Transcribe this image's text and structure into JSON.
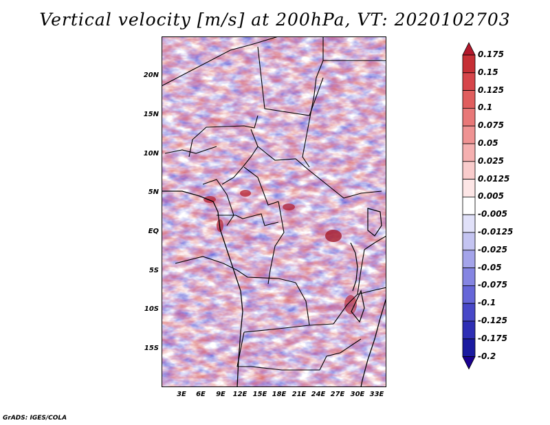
{
  "title": "Vertical velocity [m/s] at 200hPa, VT: 2020102703",
  "credit": "GrADS: IGES/COLA",
  "map": {
    "variable": "Vertical velocity",
    "units": "m/s",
    "level": "200hPa",
    "valid_time": "2020102703",
    "lat_range": [
      -19.5,
      24.5
    ],
    "lon_range": [
      0,
      34
    ],
    "lat_ticks": [
      {
        "value": 20,
        "label": "20N"
      },
      {
        "value": 15,
        "label": "15N"
      },
      {
        "value": 10,
        "label": "10N"
      },
      {
        "value": 5,
        "label": "5N"
      },
      {
        "value": 0,
        "label": "EQ"
      },
      {
        "value": -5,
        "label": "5S"
      },
      {
        "value": -10,
        "label": "10S"
      },
      {
        "value": -15,
        "label": "15S"
      }
    ],
    "lon_ticks": [
      {
        "value": 3,
        "label": "3E"
      },
      {
        "value": 6,
        "label": "6E"
      },
      {
        "value": 9,
        "label": "9E"
      },
      {
        "value": 12,
        "label": "12E"
      },
      {
        "value": 15,
        "label": "15E"
      },
      {
        "value": 18,
        "label": "18E"
      },
      {
        "value": 21,
        "label": "21E"
      },
      {
        "value": 24,
        "label": "24E"
      },
      {
        "value": 27,
        "label": "27E"
      },
      {
        "value": 30,
        "label": "30E"
      },
      {
        "value": 33,
        "label": "33E"
      }
    ]
  },
  "colorbar": {
    "labels": [
      "0.175",
      "0.15",
      "0.125",
      "0.1",
      "0.075",
      "0.05",
      "0.025",
      "0.0125",
      "0.005",
      "-0.005",
      "-0.0125",
      "-0.025",
      "-0.05",
      "-0.075",
      "-0.1",
      "-0.125",
      "-0.175",
      "-0.2"
    ],
    "colors": [
      "#b2182b",
      "#c62f35",
      "#d6454a",
      "#e05e5e",
      "#e87878",
      "#ef9393",
      "#f5b0b0",
      "#f9cccc",
      "#fde6e6",
      "#ffffff",
      "#e1e1f9",
      "#c4c4f1",
      "#a4a4ea",
      "#8585e2",
      "#6666d8",
      "#4848c8",
      "#2e2eb4",
      "#1a1aa0",
      "#1a0090"
    ]
  }
}
